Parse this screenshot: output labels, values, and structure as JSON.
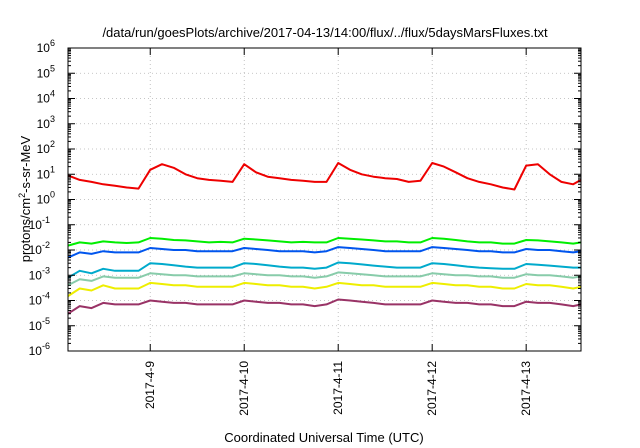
{
  "chart_data": {
    "type": "line",
    "title": "/data/run/goesPlots/archive/2017-04-13/14:00/flux/../flux/5daysMarsFluxes.txt",
    "xlabel": "Coordinated Universal Time (UTC)",
    "ylabel": {
      "prefix": "protons/cm",
      "sup": "2",
      "suffix": "-s-sr-MeV"
    },
    "yscale": "log",
    "ylim": [
      1e-06,
      1000000.0
    ],
    "xlim": [
      "2017-04-08T03:00",
      "2017-04-13T14:00"
    ],
    "grid": true,
    "legend": "none",
    "y_ticks": [
      {
        "value": 1e-06,
        "base": "10",
        "exp": "-6"
      },
      {
        "value": 1e-05,
        "base": "10",
        "exp": "-5"
      },
      {
        "value": 0.0001,
        "base": "10",
        "exp": "-4"
      },
      {
        "value": 0.001,
        "base": "10",
        "exp": "-3"
      },
      {
        "value": 0.01,
        "base": "10",
        "exp": "-2"
      },
      {
        "value": 0.1,
        "base": "10",
        "exp": "-1"
      },
      {
        "value": 1,
        "base": "10",
        "exp": "0"
      },
      {
        "value": 10,
        "base": "10",
        "exp": "1"
      },
      {
        "value": 100,
        "base": "10",
        "exp": "2"
      },
      {
        "value": 1000,
        "base": "10",
        "exp": "3"
      },
      {
        "value": 10000,
        "base": "10",
        "exp": "4"
      },
      {
        "value": 100000,
        "base": "10",
        "exp": "5"
      },
      {
        "value": 1000000,
        "base": "10",
        "exp": "6"
      }
    ],
    "x_ticks": [
      {
        "value": "2017-04-09T00:00",
        "label": "2017-4-9"
      },
      {
        "value": "2017-04-10T00:00",
        "label": "2017-4-10"
      },
      {
        "value": "2017-04-11T00:00",
        "label": "2017-4-11"
      },
      {
        "value": "2017-04-12T00:00",
        "label": "2017-4-12"
      },
      {
        "value": "2017-04-13T00:00",
        "label": "2017-4-13"
      }
    ],
    "x": [
      "2017-04-08T03:00",
      "2017-04-08T06:00",
      "2017-04-08T09:00",
      "2017-04-08T12:00",
      "2017-04-08T15:00",
      "2017-04-08T18:00",
      "2017-04-08T21:00",
      "2017-04-09T00:00",
      "2017-04-09T03:00",
      "2017-04-09T06:00",
      "2017-04-09T09:00",
      "2017-04-09T12:00",
      "2017-04-09T15:00",
      "2017-04-09T18:00",
      "2017-04-09T21:00",
      "2017-04-10T00:00",
      "2017-04-10T03:00",
      "2017-04-10T06:00",
      "2017-04-10T09:00",
      "2017-04-10T12:00",
      "2017-04-10T15:00",
      "2017-04-10T18:00",
      "2017-04-10T21:00",
      "2017-04-11T00:00",
      "2017-04-11T03:00",
      "2017-04-11T06:00",
      "2017-04-11T09:00",
      "2017-04-11T12:00",
      "2017-04-11T15:00",
      "2017-04-11T18:00",
      "2017-04-11T21:00",
      "2017-04-12T00:00",
      "2017-04-12T03:00",
      "2017-04-12T06:00",
      "2017-04-12T09:00",
      "2017-04-12T12:00",
      "2017-04-12T15:00",
      "2017-04-12T18:00",
      "2017-04-12T21:00",
      "2017-04-13T00:00",
      "2017-04-13T03:00",
      "2017-04-13T06:00",
      "2017-04-13T09:00",
      "2017-04-13T12:00",
      "2017-04-13T14:00"
    ],
    "series": [
      {
        "color": "#ee0000",
        "values": [
          9,
          6,
          5,
          4,
          3.5,
          3,
          2.7,
          15,
          25,
          18,
          10,
          7,
          6,
          5.5,
          5,
          25,
          12,
          8,
          7,
          6,
          5.5,
          5,
          5,
          28,
          15,
          10,
          8,
          7,
          6.5,
          5,
          5.5,
          28,
          20,
          12,
          7,
          5,
          4,
          3,
          2.5,
          22,
          25,
          10,
          5,
          4,
          6
        ]
      },
      {
        "color": "#00ee00",
        "values": [
          0.015,
          0.02,
          0.018,
          0.022,
          0.02,
          0.019,
          0.02,
          0.03,
          0.028,
          0.025,
          0.024,
          0.022,
          0.02,
          0.021,
          0.02,
          0.028,
          0.026,
          0.024,
          0.022,
          0.02,
          0.021,
          0.02,
          0.02,
          0.03,
          0.028,
          0.026,
          0.024,
          0.022,
          0.022,
          0.02,
          0.02,
          0.03,
          0.028,
          0.025,
          0.022,
          0.02,
          0.02,
          0.018,
          0.018,
          0.025,
          0.024,
          0.022,
          0.02,
          0.018,
          0.02
        ]
      },
      {
        "color": "#0055ee",
        "values": [
          0.005,
          0.008,
          0.007,
          0.009,
          0.008,
          0.008,
          0.008,
          0.012,
          0.011,
          0.01,
          0.01,
          0.009,
          0.009,
          0.009,
          0.009,
          0.012,
          0.011,
          0.01,
          0.009,
          0.009,
          0.009,
          0.008,
          0.009,
          0.013,
          0.012,
          0.011,
          0.01,
          0.009,
          0.009,
          0.009,
          0.009,
          0.013,
          0.012,
          0.011,
          0.01,
          0.009,
          0.009,
          0.008,
          0.008,
          0.011,
          0.01,
          0.01,
          0.009,
          0.008,
          0.009
        ]
      },
      {
        "color": "#00aacc",
        "values": [
          0.0008,
          0.0015,
          0.0012,
          0.0018,
          0.0015,
          0.0015,
          0.0015,
          0.003,
          0.0028,
          0.0025,
          0.0022,
          0.002,
          0.002,
          0.002,
          0.002,
          0.003,
          0.0028,
          0.0025,
          0.0022,
          0.002,
          0.002,
          0.0018,
          0.002,
          0.0032,
          0.003,
          0.0027,
          0.0024,
          0.0022,
          0.002,
          0.002,
          0.002,
          0.003,
          0.0028,
          0.0025,
          0.0022,
          0.002,
          0.0019,
          0.0018,
          0.0018,
          0.0028,
          0.0026,
          0.0024,
          0.0022,
          0.002,
          0.002
        ]
      },
      {
        "color": "#88ccaa",
        "values": [
          0.0004,
          0.0007,
          0.0006,
          0.0009,
          0.0008,
          0.0008,
          0.0008,
          0.0012,
          0.0011,
          0.001,
          0.001,
          0.0009,
          0.0009,
          0.0009,
          0.0009,
          0.0012,
          0.0011,
          0.001,
          0.001,
          0.0009,
          0.0009,
          0.0008,
          0.0009,
          0.0013,
          0.0012,
          0.0011,
          0.001,
          0.0009,
          0.0009,
          0.0009,
          0.0009,
          0.0012,
          0.0011,
          0.001,
          0.001,
          0.0009,
          0.0009,
          0.0008,
          0.0008,
          0.0011,
          0.001,
          0.001,
          0.0009,
          0.0008,
          0.0009
        ]
      },
      {
        "color": "#eeee00",
        "values": [
          0.00015,
          0.0003,
          0.00025,
          0.0004,
          0.0003,
          0.0003,
          0.0003,
          0.0005,
          0.00045,
          0.0004,
          0.0004,
          0.00035,
          0.00035,
          0.00035,
          0.00035,
          0.0005,
          0.00045,
          0.0004,
          0.0004,
          0.00035,
          0.00035,
          0.0003,
          0.00035,
          0.0005,
          0.00045,
          0.0004,
          0.0004,
          0.00035,
          0.00035,
          0.00035,
          0.00035,
          0.0005,
          0.00045,
          0.0004,
          0.0004,
          0.00035,
          0.00035,
          0.0003,
          0.0003,
          0.00045,
          0.0004,
          0.0004,
          0.00035,
          0.0003,
          0.00035
        ]
      },
      {
        "color": "#993366",
        "values": [
          3e-05,
          6e-05,
          5e-05,
          8e-05,
          7e-05,
          7e-05,
          7e-05,
          0.0001,
          9e-05,
          8e-05,
          8e-05,
          7e-05,
          7e-05,
          7e-05,
          7e-05,
          0.0001,
          9e-05,
          8e-05,
          8e-05,
          7e-05,
          7e-05,
          6e-05,
          7e-05,
          0.00011,
          0.0001,
          9e-05,
          8e-05,
          7e-05,
          7e-05,
          7e-05,
          7e-05,
          0.0001,
          9e-05,
          8e-05,
          8e-05,
          7e-05,
          7e-05,
          6e-05,
          6e-05,
          9e-05,
          8e-05,
          8e-05,
          7e-05,
          6e-05,
          7e-05
        ]
      }
    ]
  }
}
